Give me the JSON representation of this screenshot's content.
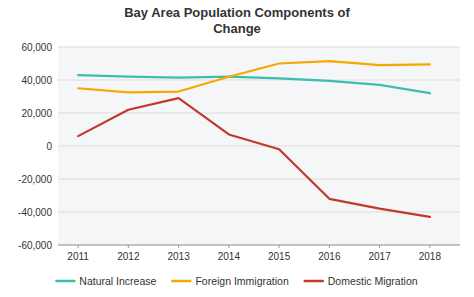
{
  "chart_data": {
    "type": "line",
    "title": "Bay Area Population Components of\nChange",
    "x": [
      2011,
      2012,
      2013,
      2014,
      2015,
      2016,
      2017,
      2018
    ],
    "xlim": [
      2010.6,
      2018.6
    ],
    "xticks": [
      2011,
      2012,
      2013,
      2014,
      2015,
      2016,
      2017,
      2018
    ],
    "ylim": [
      -60000,
      60000
    ],
    "yticks": [
      {
        "value": -60000,
        "label": "-60,000"
      },
      {
        "value": -40000,
        "label": "-40,000"
      },
      {
        "value": -20000,
        "label": "-20,000"
      },
      0,
      {
        "value": 20000,
        "label": "20,000"
      },
      {
        "value": 40000,
        "label": "40,000"
      },
      {
        "value": 60000,
        "label": "60,000"
      }
    ],
    "grid": true,
    "legend": "bottom",
    "series": [
      {
        "name": "Natural Increase",
        "color": "#3dbdb0",
        "values": [
          43000,
          42000,
          41500,
          42000,
          41000,
          39500,
          37000,
          32000
        ]
      },
      {
        "name": "Foreign Immigration",
        "color": "#f5a800",
        "values": [
          35000,
          32500,
          33000,
          42000,
          50000,
          51500,
          49000,
          49500
        ]
      },
      {
        "name": "Domestic Migration",
        "color": "#c0392b",
        "values": [
          6000,
          22000,
          29000,
          7000,
          -2000,
          -32000,
          -38000,
          -43000
        ]
      }
    ]
  }
}
